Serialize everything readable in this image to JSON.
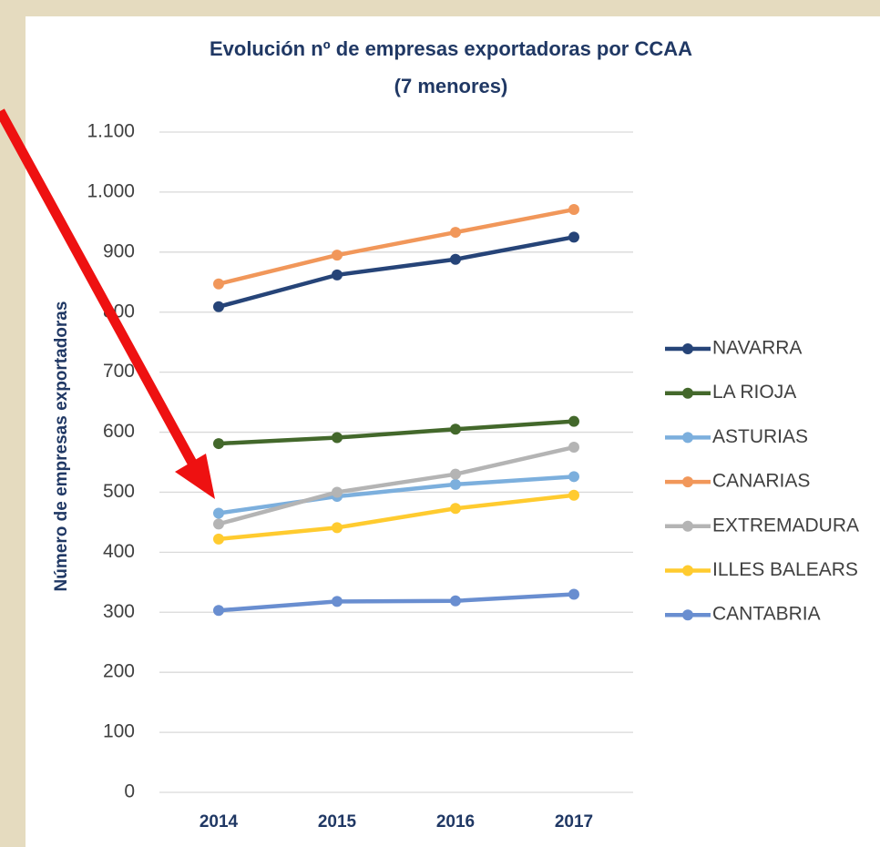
{
  "chart_data": {
    "type": "line",
    "title": [
      "Evolución nº de empresas exportadoras por CCAA",
      "(7 menores)"
    ],
    "y_label": "Número de empresas exportadoras",
    "categories": [
      "2014",
      "2015",
      "2016",
      "2017"
    ],
    "series": [
      {
        "name": "NAVARRA",
        "color": "#264478",
        "values": [
          809,
          862,
          888,
          925
        ]
      },
      {
        "name": "LA RIOJA",
        "color": "#43682b",
        "values": [
          581,
          591,
          605,
          618
        ]
      },
      {
        "name": "ASTURIAS",
        "color": "#7cafdd",
        "values": [
          465,
          493,
          513,
          526
        ]
      },
      {
        "name": "CANARIAS",
        "color": "#f1975a",
        "values": [
          847,
          895,
          933,
          971
        ]
      },
      {
        "name": "EXTREMADURA",
        "color": "#b4b4b4",
        "values": [
          447,
          500,
          530,
          575
        ]
      },
      {
        "name": "ILLES BALEARS",
        "color": "#ffcb2f",
        "values": [
          422,
          441,
          473,
          495
        ]
      },
      {
        "name": "CANTABRIA",
        "color": "#698ed0",
        "values": [
          303,
          318,
          319,
          330
        ]
      }
    ],
    "ylim": [
      0,
      1100
    ],
    "yticks": [
      0,
      100,
      200,
      300,
      400,
      500,
      600,
      700,
      800,
      900,
      {
        "value": 1000,
        "label": "1.000"
      },
      {
        "value": 1100,
        "label": "1.100"
      }
    ],
    "grid": true,
    "legend": "right"
  }
}
